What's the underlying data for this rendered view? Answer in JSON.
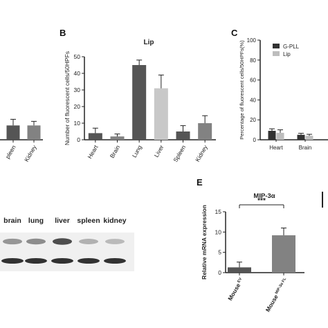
{
  "panels": {
    "b": "B",
    "c": "C",
    "e": "E"
  },
  "colors": {
    "dark": "#555555",
    "medium": "#828282",
    "light": "#c8c8c8",
    "lighter": "#bdbdbd",
    "axis": "#222222"
  },
  "chart_data": [
    {
      "id": "a_partial",
      "type": "bar",
      "categories": [
        "Spleen",
        "Kidney"
      ],
      "visible_category_labels": [
        "pleen",
        "Kidney"
      ],
      "values": [
        7,
        7
      ],
      "errors": [
        3,
        2
      ],
      "colors": [
        "#555555",
        "#828282"
      ]
    },
    {
      "id": "b",
      "type": "bar",
      "title": "Lip",
      "ylabel": "Number of fluorescent cells/50HPFs",
      "ylim": [
        0,
        50
      ],
      "yticks": [
        0,
        10,
        20,
        30,
        40,
        50
      ],
      "categories": [
        "Heart",
        "Brain",
        "Lung",
        "Liver",
        "Spleen",
        "Kidney"
      ],
      "values": [
        4,
        2,
        45,
        31,
        5,
        10
      ],
      "errors": [
        3,
        1.5,
        3,
        8,
        3.5,
        4.5
      ],
      "colors": [
        "#555555",
        "#828282",
        "#555555",
        "#c8c8c8",
        "#555555",
        "#828282"
      ]
    },
    {
      "id": "c",
      "type": "bar",
      "ylabel": "Percentage of fluorescent cells/50HPFs(%)",
      "ylim": [
        0,
        100
      ],
      "yticks": [
        0,
        20,
        40,
        60,
        80,
        100
      ],
      "categories": [
        "Heart",
        "Brain"
      ],
      "series": [
        {
          "name": "G-PLL",
          "values": [
            9,
            5
          ],
          "errors": [
            2,
            1.5
          ],
          "color": "#333333"
        },
        {
          "name": "Lip",
          "values": [
            7,
            4
          ],
          "errors": [
            3,
            1.5
          ],
          "color": "#bdbdbd"
        }
      ]
    },
    {
      "id": "e",
      "type": "bar",
      "title": "MIP-3α",
      "ylabel": "Relative mRNA expression",
      "ylim": [
        0,
        15
      ],
      "yticks": [
        0,
        5,
        10,
        15
      ],
      "categories": [
        "Mouse EV",
        "Mouse MIP-3α FL"
      ],
      "category_labels": [
        {
          "main": "Mouse",
          "sup": "EV"
        },
        {
          "main": "Mouse",
          "sup": "MIP-3α FL"
        }
      ],
      "values": [
        1.3,
        9.2
      ],
      "errors": [
        1.3,
        1.8
      ],
      "colors": [
        "#555555",
        "#828282"
      ],
      "significance": "***"
    }
  ],
  "blot": {
    "lanes": [
      "brain",
      "lung",
      "liver",
      "spleen",
      "kidney"
    ],
    "row1_intensity": [
      0.45,
      0.5,
      0.85,
      0.3,
      0.25
    ],
    "row2_intensity": [
      0.9,
      0.9,
      0.9,
      0.9,
      0.9
    ]
  }
}
